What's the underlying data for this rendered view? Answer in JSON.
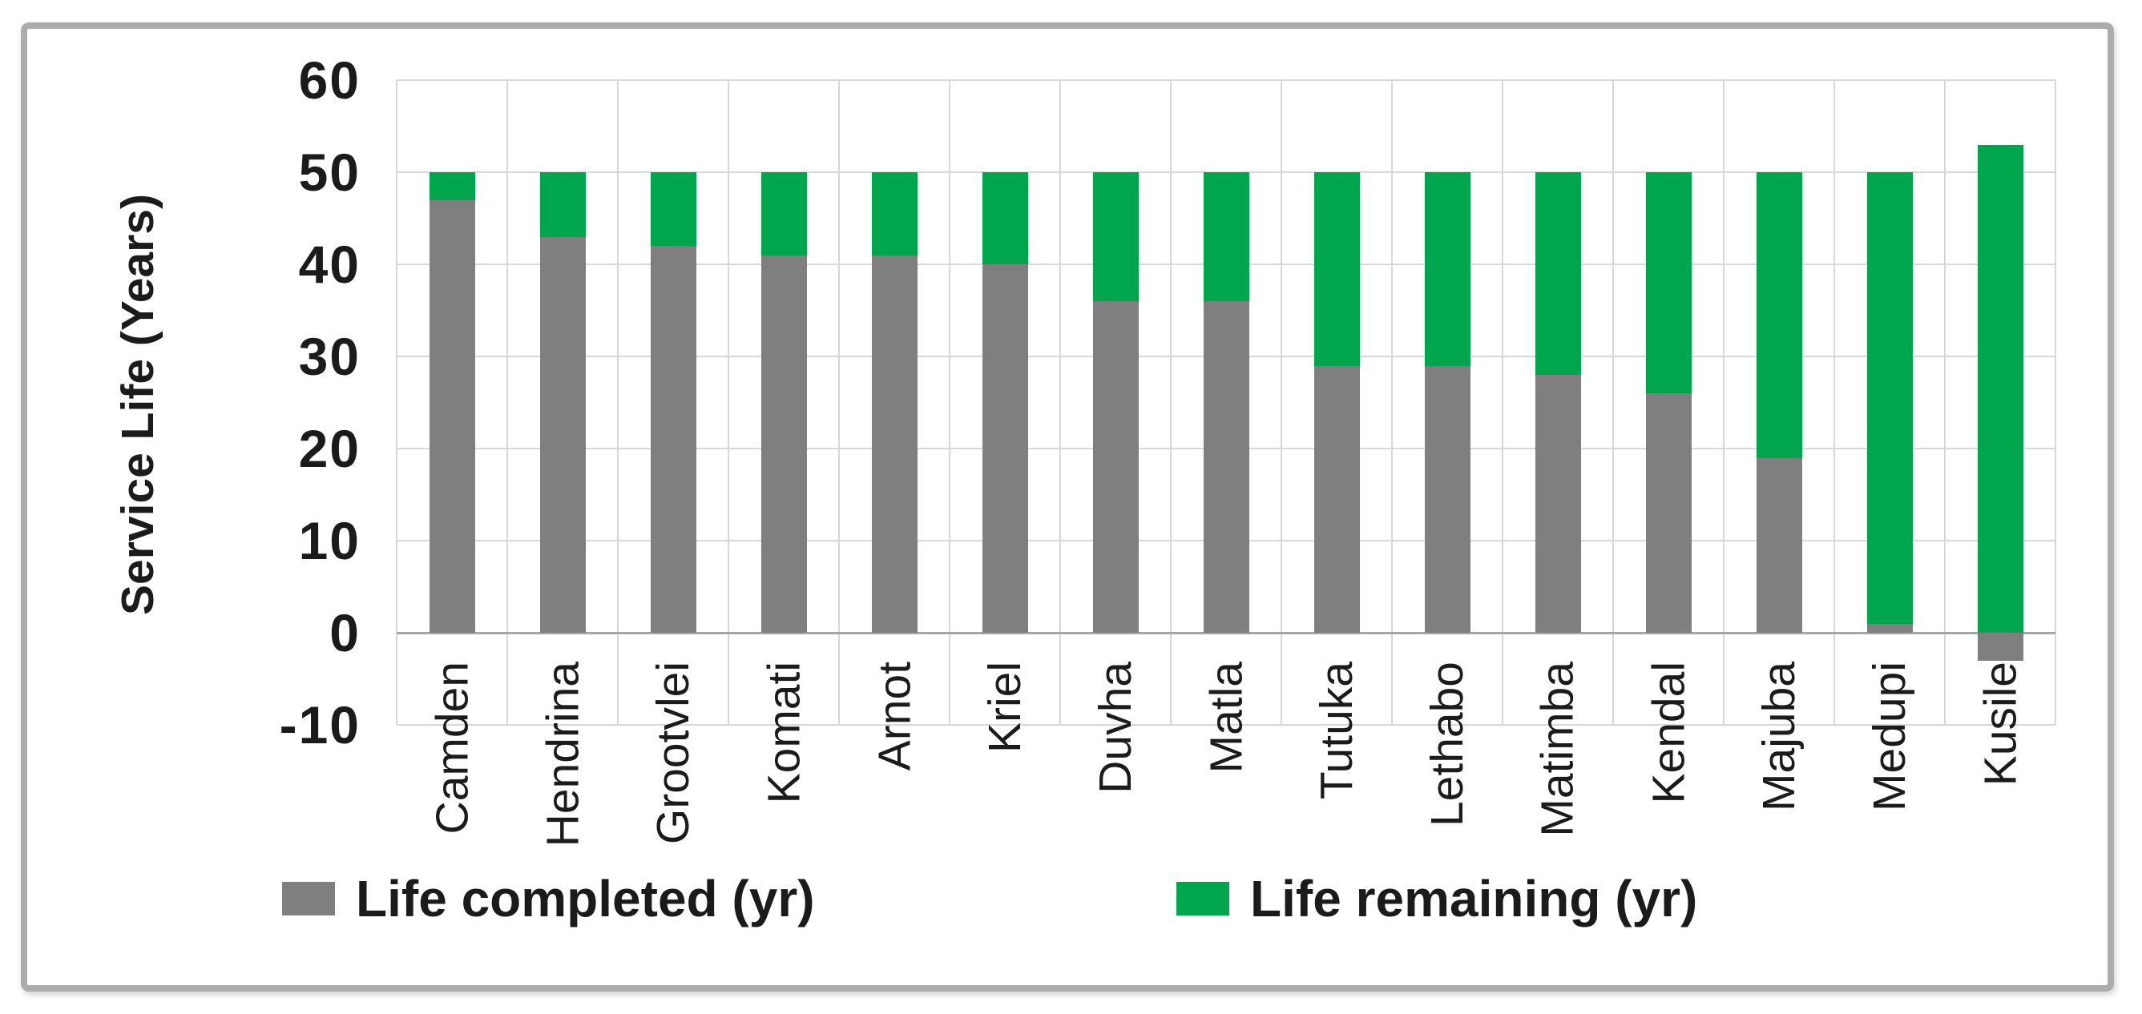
{
  "chart_data": {
    "type": "bar",
    "subtype": "stacked-column",
    "title": "",
    "xlabel": "",
    "ylabel": "Service Life (Years)",
    "categories": [
      "Camden",
      "Hendrina",
      "Grootvlei",
      "Komati",
      "Arnot",
      "Kriel",
      "Duvha",
      "Matla",
      "Tutuka",
      "Lethabo",
      "Matimba",
      "Kendal",
      "Majuba",
      "Medupi",
      "Kusile"
    ],
    "series": [
      {
        "name": "Life completed (yr)",
        "color": "#7f7f7f",
        "values": [
          47,
          43,
          42,
          41,
          41,
          40,
          36,
          36,
          29,
          29,
          28,
          26,
          19,
          1,
          -3
        ]
      },
      {
        "name": "Life remaining (yr)",
        "color": "#00a64e",
        "values": [
          3,
          7,
          8,
          9,
          9,
          10,
          14,
          14,
          21,
          21,
          22,
          24,
          31,
          49,
          53
        ]
      }
    ],
    "y_axis": {
      "min": -10,
      "max": 60,
      "step": 10,
      "tick_labels": [
        "60",
        "50",
        "40",
        "30",
        "20",
        "10",
        "0",
        "-10"
      ]
    },
    "grid": {
      "horizontal": true,
      "vertical": true,
      "color": "#d8d8d8",
      "zero_line_color": "#a6a6a6"
    },
    "legend_position": "bottom",
    "colors": {
      "background": "#ffffff",
      "frame_border": "#acacac",
      "text": "#1b1b1b"
    }
  }
}
